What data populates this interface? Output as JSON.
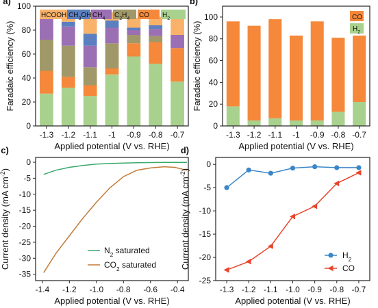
{
  "colors": {
    "H2": "#a9d18e",
    "CO": "#f5883a",
    "C2H4": "#a09868",
    "CH4": "#9b6fb3",
    "CH3OH": "#5b7fbf",
    "HCOOH": "#f8b26a",
    "line_blue": "#3a86c8",
    "line_red": "#e8452c",
    "line_green": "#3aa86b",
    "line_brown": "#c27a36"
  },
  "chart_data": [
    {
      "panel": "a)",
      "type": "bar",
      "stacked": true,
      "categories": [
        "-1.3",
        "-1.2",
        "-1.1",
        "-1",
        "-0.9",
        "-0.8",
        "-0.7"
      ],
      "series": [
        {
          "name": "H2",
          "label_main": "H",
          "label_sub": "2",
          "values": [
            27,
            32,
            25,
            43,
            58,
            52,
            37
          ]
        },
        {
          "name": "CO",
          "label_main": "CO",
          "label_sub": "",
          "values": [
            19,
            9,
            9,
            5,
            11,
            18,
            28
          ]
        },
        {
          "name": "C2H4",
          "label_main": "C",
          "label_sub": "2",
          "label_main2": "H",
          "label_sub2": "4",
          "values": [
            26,
            26,
            15,
            21,
            7,
            5,
            0
          ]
        },
        {
          "name": "CH4",
          "label_main": "CH",
          "label_sub": "4",
          "values": [
            18,
            16,
            18,
            13,
            4,
            6,
            11
          ]
        },
        {
          "name": "CH3OH",
          "label_main": "CH",
          "label_sub": "3",
          "label_main2": "OH",
          "label_sub2": "",
          "values": [
            3,
            4,
            10,
            6,
            2,
            3,
            0
          ]
        },
        {
          "name": "HCOOH",
          "label_main": "HCOOH",
          "label_sub": "",
          "values": [
            1,
            4,
            18,
            7,
            8,
            7,
            14
          ]
        }
      ],
      "xlabel": "Applied potential (V vs. RHE)",
      "ylabel": "Faradaic efficiency (%)",
      "ylim": [
        0,
        100
      ],
      "yticks": [
        0,
        20,
        40,
        60,
        80,
        100
      ],
      "legend": "top"
    },
    {
      "panel": "b)",
      "type": "bar",
      "stacked": true,
      "categories": [
        "-1.3",
        "-1.2",
        "-1.1",
        "-1",
        "-0.9",
        "-0.8",
        "-0.7"
      ],
      "series": [
        {
          "name": "H2",
          "label_main": "H",
          "label_sub": "2",
          "values": [
            18,
            5,
            7,
            5,
            5,
            13,
            22
          ]
        },
        {
          "name": "CO",
          "label_main": "CO",
          "label_sub": "",
          "values": [
            78,
            87,
            91,
            78,
            91,
            68,
            61
          ]
        }
      ],
      "xlabel": "Applied potential (V vs. RHE)",
      "ylabel": "Faradaic efficiency (%)",
      "ylim": [
        0,
        110
      ],
      "yticks": [
        0,
        20,
        40,
        60,
        80,
        100
      ],
      "legend": "top-right"
    },
    {
      "panel": "c)",
      "type": "line",
      "series": [
        {
          "name": "N2 saturated",
          "label_main": "N",
          "label_sub": "2",
          "label_rest": " saturated",
          "x": [
            -1.39,
            -1.3,
            -1.2,
            -1.1,
            -1.0,
            -0.9,
            -0.8,
            -0.7,
            -0.6,
            -0.5,
            -0.4,
            -0.33
          ],
          "y": [
            -3.8,
            -2.5,
            -1.6,
            -1.0,
            -0.6,
            -0.4,
            -0.25,
            -0.15,
            -0.1,
            -0.07,
            -0.05,
            -0.05
          ]
        },
        {
          "name": "CO2 saturated",
          "label_main": "CO",
          "label_sub": "2",
          "label_rest": " saturated",
          "x": [
            -1.39,
            -1.3,
            -1.2,
            -1.1,
            -1.0,
            -0.9,
            -0.8,
            -0.7,
            -0.6,
            -0.5,
            -0.42,
            -0.35,
            -0.33
          ],
          "y": [
            -34.5,
            -28.5,
            -23.0,
            -17.5,
            -12.5,
            -8.0,
            -4.5,
            -2.5,
            -1.8,
            -1.4,
            -1.6,
            -2.3,
            -2.5
          ]
        }
      ],
      "xlabel": "Applied potential (V vs. RHE)",
      "ylabel": "Current density (mA cm",
      "ylabel_sup": "-2",
      "ylabel_end": ")",
      "xlim": [
        -1.45,
        -0.32
      ],
      "ylim": [
        -37,
        1.5
      ],
      "xticks": [
        -1.4,
        -1.2,
        -1.0,
        -0.8,
        -0.6,
        -0.4
      ],
      "xtick_labels": [
        "-1.4",
        "-1.2",
        "-1.0",
        "-0.8",
        "-0.6",
        "-0.4"
      ],
      "yticks": [
        0,
        -5,
        -10,
        -15,
        -20,
        -25,
        -30,
        -35
      ],
      "legend": "bottom-right"
    },
    {
      "panel": "d)",
      "type": "line",
      "series": [
        {
          "name": "H2",
          "label_main": "H",
          "label_sub": "2",
          "marker": "circle",
          "x": [
            -1.3,
            -1.2,
            -1.1,
            -1.0,
            -0.9,
            -0.8,
            -0.7
          ],
          "y": [
            -5.0,
            -1.2,
            -1.9,
            -0.8,
            -0.5,
            -0.7,
            -0.7
          ]
        },
        {
          "name": "CO",
          "label_main": "CO",
          "label_sub": "",
          "marker": "triangle-left",
          "x": [
            -1.3,
            -1.2,
            -1.1,
            -1.0,
            -0.9,
            -0.8,
            -0.7
          ],
          "y": [
            -22.7,
            -20.9,
            -17.6,
            -11.2,
            -9.0,
            -4.1,
            -1.8
          ]
        }
      ],
      "xlabel": "Applied potential (V vs. RHE)",
      "ylabel": "Current density (mA cm",
      "ylabel_sup": "-2",
      "ylabel_end": ")",
      "xlim": [
        -1.35,
        -0.65
      ],
      "ylim": [
        -25,
        1.5
      ],
      "xticks": [
        -1.3,
        -1.2,
        -1.1,
        -1.0,
        -0.9,
        -0.8,
        -0.7
      ],
      "xtick_labels": [
        "-1.3",
        "-1.2",
        "-1.1",
        "-1.0",
        "-0.9",
        "-0.8",
        "-0.7"
      ],
      "yticks": [
        0,
        -5,
        -10,
        -15,
        -20,
        -25
      ],
      "legend": "bottom-right"
    }
  ]
}
